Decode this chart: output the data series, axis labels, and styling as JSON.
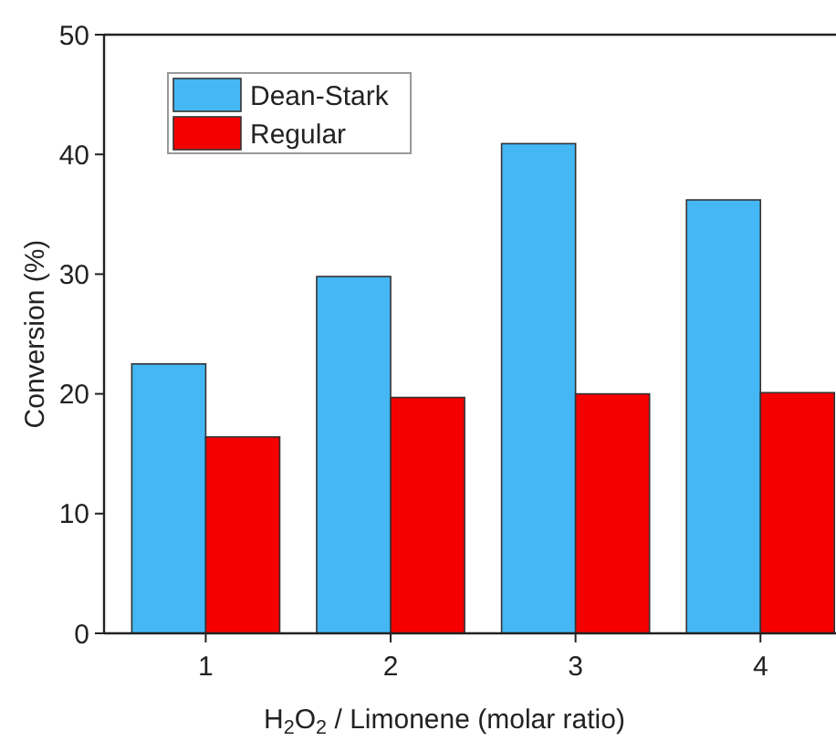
{
  "chart_data": {
    "type": "bar",
    "xlabel": "H$_{2}$O$_{2}$ / Limonene (molar ratio)",
    "ylabel": "Conversion (%)",
    "categories": [
      "1",
      "2",
      "3",
      "4"
    ],
    "series": [
      {
        "name": "Dean-Stark",
        "color": "#45b7f5",
        "values": [
          22.5,
          29.8,
          40.9,
          36.2
        ]
      },
      {
        "name": "Regular",
        "color": "#f50000",
        "values": [
          16.4,
          19.7,
          20.0,
          20.1
        ]
      }
    ],
    "ylim": [
      0,
      50
    ],
    "yticks": [
      0,
      10,
      20,
      30,
      40,
      50
    ],
    "legend": "top left",
    "grid": false
  }
}
